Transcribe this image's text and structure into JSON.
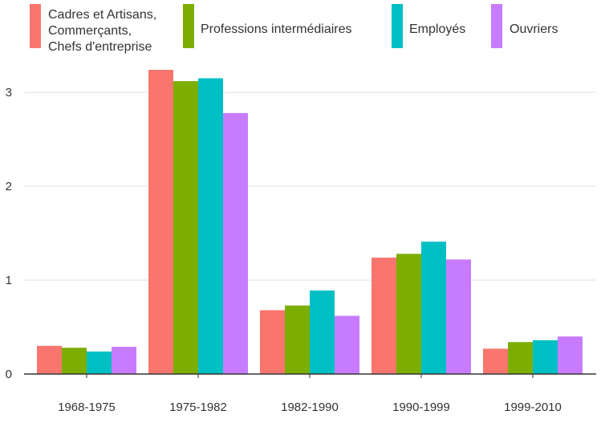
{
  "chart_data": {
    "type": "bar",
    "categories": [
      "1968-1975",
      "1975-1982",
      "1982-1990",
      "1990-1999",
      "1999-2010"
    ],
    "series": [
      {
        "name": "Cadres et Artisans, Commerçants, Chefs d'entreprise",
        "name_lines": [
          "Cadres et Artisans,",
          "Commerçants,",
          "Chefs d'entreprise"
        ],
        "color": "#F8766D",
        "values": [
          0.3,
          3.24,
          0.68,
          1.24,
          0.27
        ]
      },
      {
        "name": "Professions intermédiaires",
        "name_lines": [
          "Professions intermédiaires"
        ],
        "color": "#7CAE00",
        "values": [
          0.28,
          3.12,
          0.73,
          1.28,
          0.34
        ]
      },
      {
        "name": "Employés",
        "name_lines": [
          "Employés"
        ],
        "color": "#00BFC4",
        "values": [
          0.24,
          3.15,
          0.89,
          1.41,
          0.36
        ]
      },
      {
        "name": "Ouvriers",
        "name_lines": [
          "Ouvriers"
        ],
        "color": "#C77CFF",
        "values": [
          0.29,
          2.78,
          0.62,
          1.22,
          0.4
        ]
      }
    ],
    "title": "",
    "xlabel": "",
    "ylabel": "",
    "ylim": [
      0,
      3.3
    ],
    "yticks": [
      0,
      1,
      2,
      3
    ],
    "grid": "horizontal",
    "legend_position": "top",
    "colors": {
      "gridline": "#E0E0E0",
      "axis": "#333333",
      "text": "#333333"
    }
  }
}
